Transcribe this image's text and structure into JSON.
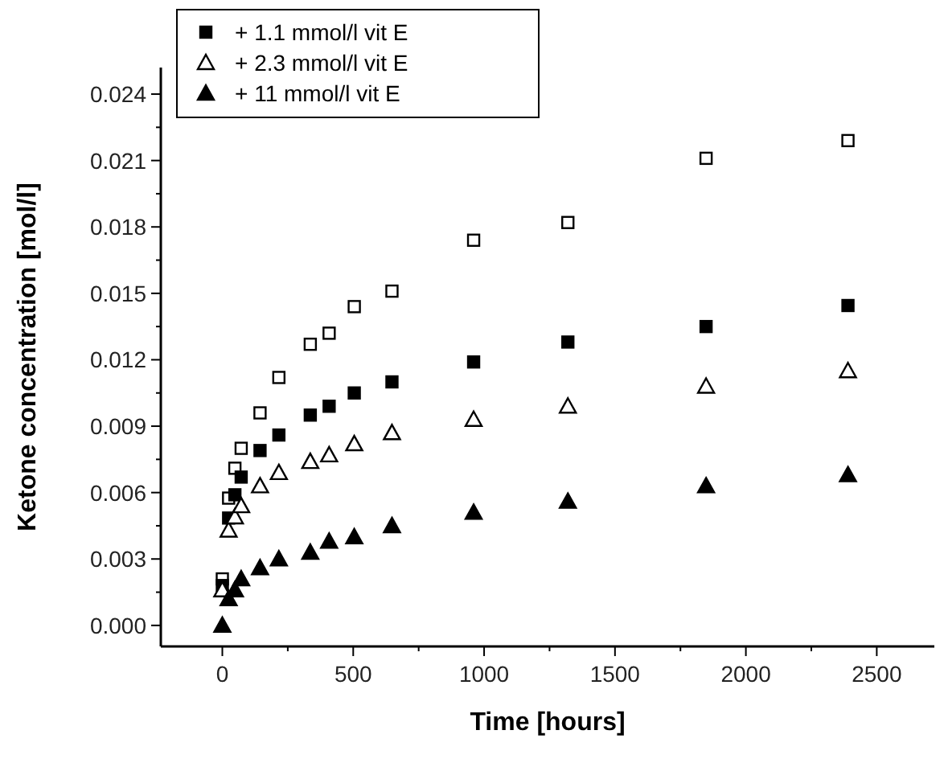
{
  "chart_data": {
    "type": "scatter",
    "xlabel": "Time [hours]",
    "ylabel": "Ketone concentration [mol/l]",
    "x": [
      0,
      24,
      48,
      72,
      144,
      216,
      336,
      408,
      504,
      648,
      960,
      1320,
      1848,
      2390
    ],
    "series": [
      {
        "color": "#000000",
        "marker": "square",
        "values": [
          0.0021,
          0.00575,
          0.0071,
          0.008,
          0.0096,
          0.0112,
          0.0127,
          0.0132,
          0.0144,
          0.0151,
          0.0174,
          0.0182,
          0.0211,
          0.0219
        ]
      },
      {
        "name": "+ 1.1 mmol/l vit E",
        "color": "#000000",
        "marker": "square",
        "values": [
          0.0018,
          0.00485,
          0.0059,
          0.0067,
          0.0079,
          0.0086,
          0.0095,
          0.0099,
          0.0105,
          0.011,
          0.0119,
          0.0128,
          0.0135,
          0.01445
        ]
      },
      {
        "name": "+ 2.3 mmol/l vit E",
        "color": "#000000",
        "marker": "triangle",
        "values": [
          0.0016,
          0.0043,
          0.0049,
          0.0054,
          0.0063,
          0.0069,
          0.0074,
          0.0077,
          0.0082,
          0.0087,
          0.0093,
          0.0099,
          0.0108,
          0.0115
        ]
      },
      {
        "name": "+ 11 mmol/l vit E",
        "color": "#000000",
        "marker": "triangle",
        "values": [
          0,
          0.0012,
          0.0016,
          0.0021,
          0.0026,
          0.003,
          0.0033,
          0.0038,
          0.004,
          0.0045,
          0.0051,
          0.0056,
          0.0063,
          0.0068
        ]
      }
    ],
    "xlim": [
      -235,
      2720
    ],
    "xticks": [
      0,
      {
        "value": 250,
        "label": null
      },
      500,
      {
        "value": 750,
        "label": null
      },
      1000,
      {
        "value": 1250,
        "label": null
      },
      1500,
      {
        "value": 1750,
        "label": null
      },
      2000,
      {
        "value": 2250,
        "label": null
      },
      2500
    ],
    "ylim": [
      -0.00095,
      0.0252
    ],
    "yticks": [
      {
        "value": 0,
        "label": "0.000"
      },
      {
        "value": 0.0015,
        "label": null
      },
      {
        "value": 0.003,
        "label": "0.003"
      },
      {
        "value": 0.0045,
        "label": null
      },
      {
        "value": 0.006,
        "label": "0.006"
      },
      {
        "value": 0.0075,
        "label": null
      },
      {
        "value": 0.009,
        "label": "0.009"
      },
      {
        "value": 0.0105,
        "label": null
      },
      {
        "value": 0.012,
        "label": "0.012"
      },
      {
        "value": 0.0135,
        "label": null
      },
      {
        "value": 0.015,
        "label": "0.015"
      },
      {
        "value": 0.0165,
        "label": null
      },
      {
        "value": 0.018,
        "label": "0.018"
      },
      {
        "value": 0.0195,
        "label": null
      },
      {
        "value": 0.021,
        "label": "0.021"
      },
      {
        "value": 0.0225,
        "label": null
      },
      {
        "value": 0.024,
        "label": "0.024"
      }
    ],
    "grid": false,
    "legend": "top left"
  }
}
